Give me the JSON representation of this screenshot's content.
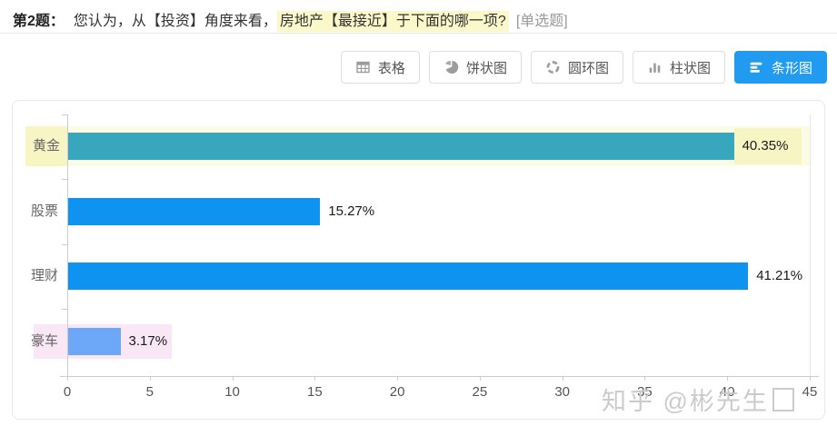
{
  "header": {
    "question_no": "第2题：",
    "question_text": "您认为，从【投资】角度来看，",
    "question_highlight": "房地产【最接近】于下面的哪一项?",
    "question_type": "[单选题]"
  },
  "toolbar": {
    "tabs": [
      {
        "label": "表格",
        "icon": "table-icon",
        "active": false
      },
      {
        "label": "饼状图",
        "icon": "pie-icon",
        "active": false
      },
      {
        "label": "圆环图",
        "icon": "donut-icon",
        "active": false
      },
      {
        "label": "柱状图",
        "icon": "column-chart-icon",
        "active": false
      },
      {
        "label": "条形图",
        "icon": "bar-chart-icon",
        "active": true
      }
    ]
  },
  "chart_data": {
    "type": "bar",
    "orientation": "horizontal",
    "categories": [
      "黄金",
      "股票",
      "理财",
      "豪车"
    ],
    "values": [
      40.35,
      15.27,
      41.21,
      3.17
    ],
    "value_labels": [
      "40.35%",
      "15.27%",
      "41.21%",
      "3.17%"
    ],
    "bar_colors": [
      "#38a6bd",
      "#0e93f0",
      "#0e93f0",
      "#6da7f7"
    ],
    "xlim": [
      0,
      45
    ],
    "x_ticks": [
      0,
      5,
      10,
      15,
      20,
      25,
      30,
      35,
      40,
      45
    ],
    "legend": "none",
    "grid": "right-edge-gridline-only",
    "highlights": [
      {
        "index": 0,
        "style": "row",
        "color": "#f7f5c4",
        "band_color": "rgba(250,248,205,0.55)"
      },
      {
        "index": 3,
        "style": "box",
        "color": "#fae7f6"
      }
    ]
  },
  "watermark": {
    "text": "知乎 @彬先生"
  },
  "colors": {
    "accent_blue": "#209bf0",
    "teal_bar": "#38a6bd",
    "blue_bar": "#0e93f0",
    "light_blue_bar": "#6da7f7",
    "yellow_highlight": "#f7f5c4",
    "pink_highlight": "#fae7f6",
    "title_highlight": "#fbf8c9"
  }
}
